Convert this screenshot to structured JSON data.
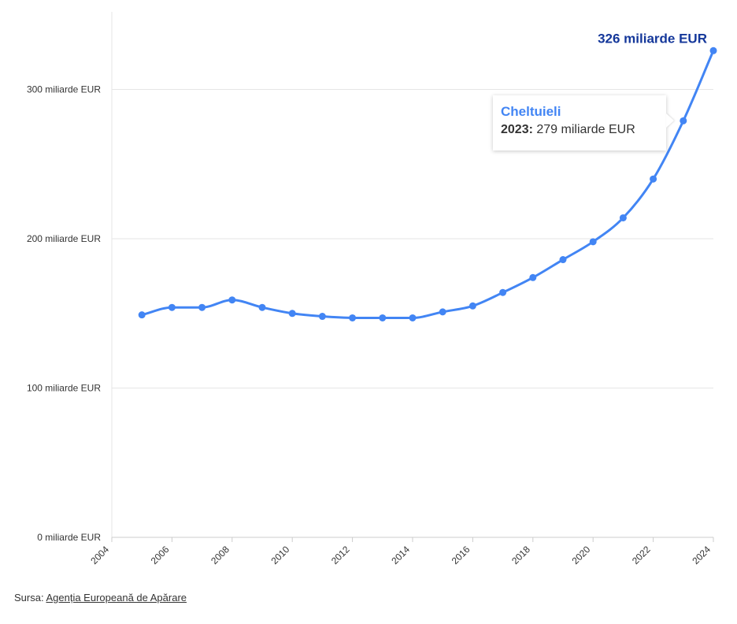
{
  "chart_data": {
    "type": "line",
    "title": "",
    "xlabel": "",
    "ylabel": "",
    "x_ticks": [
      "2004",
      "2006",
      "2008",
      "2010",
      "2012",
      "2014",
      "2016",
      "2018",
      "2020",
      "2022",
      "2024"
    ],
    "y_ticks": [
      "0 miliarde EUR",
      "100 miliarde EUR",
      "200 miliarde EUR",
      "300 miliarde EUR"
    ],
    "xlim": [
      2004,
      2024
    ],
    "ylim": [
      0,
      352
    ],
    "grid": "horizontal",
    "series": [
      {
        "name": "Cheltuieli",
        "color": "#4285f4",
        "x": [
          2005,
          2006,
          2007,
          2008,
          2009,
          2010,
          2011,
          2012,
          2013,
          2014,
          2015,
          2016,
          2017,
          2018,
          2019,
          2020,
          2021,
          2022,
          2023,
          2024
        ],
        "values": [
          149,
          154,
          154,
          159,
          154,
          150,
          148,
          147,
          147,
          147,
          151,
          155,
          164,
          174,
          186,
          198,
          214,
          240,
          279,
          326
        ]
      }
    ],
    "end_label": "326 miliarde EUR",
    "tooltip": {
      "title": "Cheltuieli",
      "year": "2023:",
      "value": "279 miliarde EUR"
    }
  },
  "source": {
    "prefix": "Sursa:",
    "link_text": "Agenția Europeană de Apărare"
  },
  "colors": {
    "line": "#4285f4",
    "end_label": "#14379a",
    "grid": "#e6e6e6",
    "axis": "#cccccc"
  }
}
